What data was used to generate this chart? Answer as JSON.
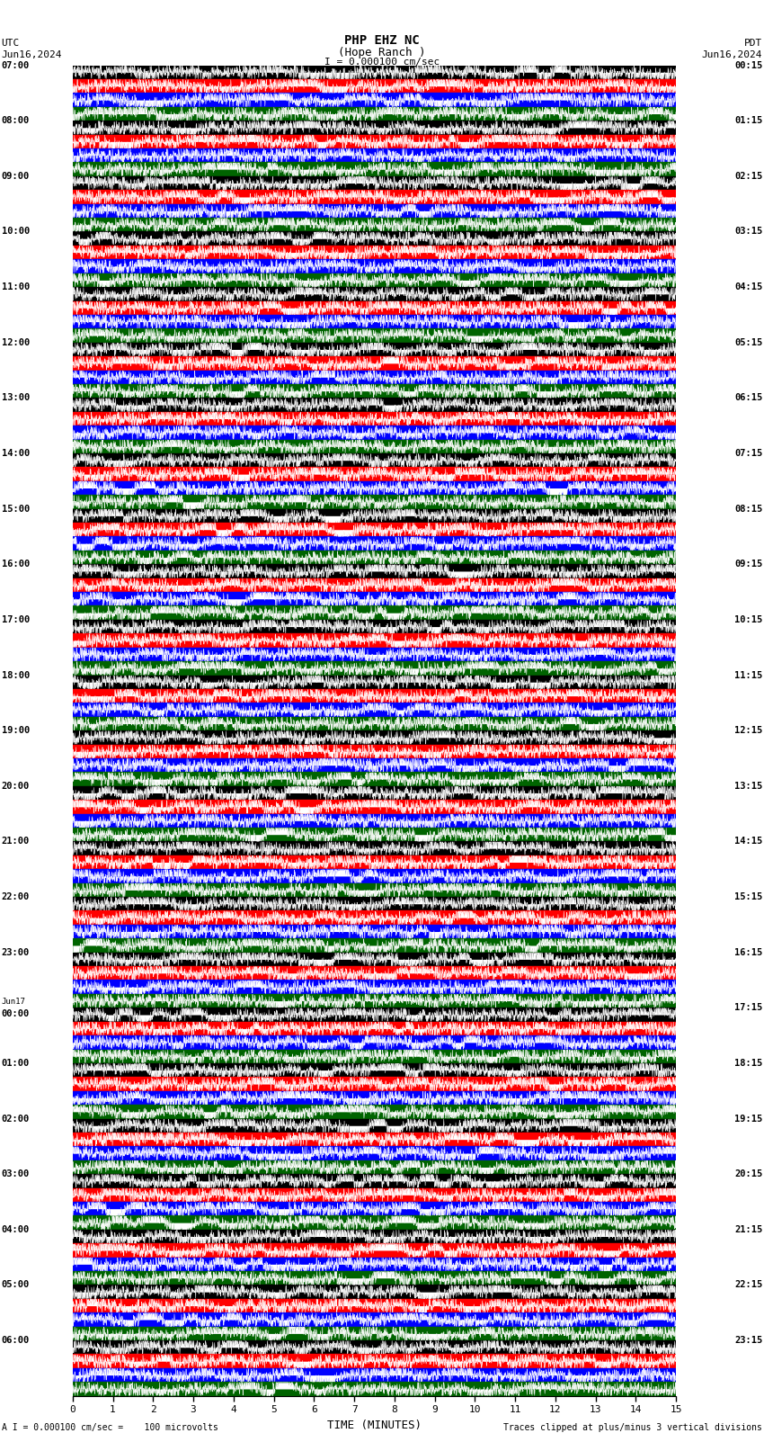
{
  "title_line1": "PHP EHZ NC",
  "title_line2": "(Hope Ranch )",
  "scale_label": "I = 0.000100 cm/sec",
  "utc_label": "UTC",
  "pdt_label": "PDT",
  "date_left": "Jun16,2024",
  "date_right": "Jun16,2024",
  "bottom_label_left": "A I = 0.000100 cm/sec =    100 microvolts",
  "bottom_label_right": "Traces clipped at plus/minus 3 vertical divisions",
  "xlabel": "TIME (MINUTES)",
  "xticks": [
    0,
    1,
    2,
    3,
    4,
    5,
    6,
    7,
    8,
    9,
    10,
    11,
    12,
    13,
    14,
    15
  ],
  "fig_width": 8.5,
  "fig_height": 16.13,
  "dpi": 100,
  "n_hours": 24,
  "rows_per_hour": 4,
  "left_times": [
    "07:00",
    "08:00",
    "09:00",
    "10:00",
    "11:00",
    "12:00",
    "13:00",
    "14:00",
    "15:00",
    "16:00",
    "17:00",
    "18:00",
    "19:00",
    "20:00",
    "21:00",
    "22:00",
    "23:00",
    "00:00",
    "01:00",
    "02:00",
    "03:00",
    "04:00",
    "05:00",
    "06:00"
  ],
  "right_times": [
    "00:15",
    "01:15",
    "02:15",
    "03:15",
    "04:15",
    "05:15",
    "06:15",
    "07:15",
    "08:15",
    "09:15",
    "10:15",
    "11:15",
    "12:15",
    "13:15",
    "14:15",
    "15:15",
    "16:15",
    "17:15",
    "18:15",
    "19:15",
    "20:15",
    "21:15",
    "22:15",
    "23:15"
  ],
  "jun17_hour_idx": 17,
  "row_colors_cycle": [
    "#000000",
    "#ff0000",
    "#0000ff",
    "#006400"
  ],
  "trace_color": "#ffffff",
  "background_color": "#ffffff"
}
